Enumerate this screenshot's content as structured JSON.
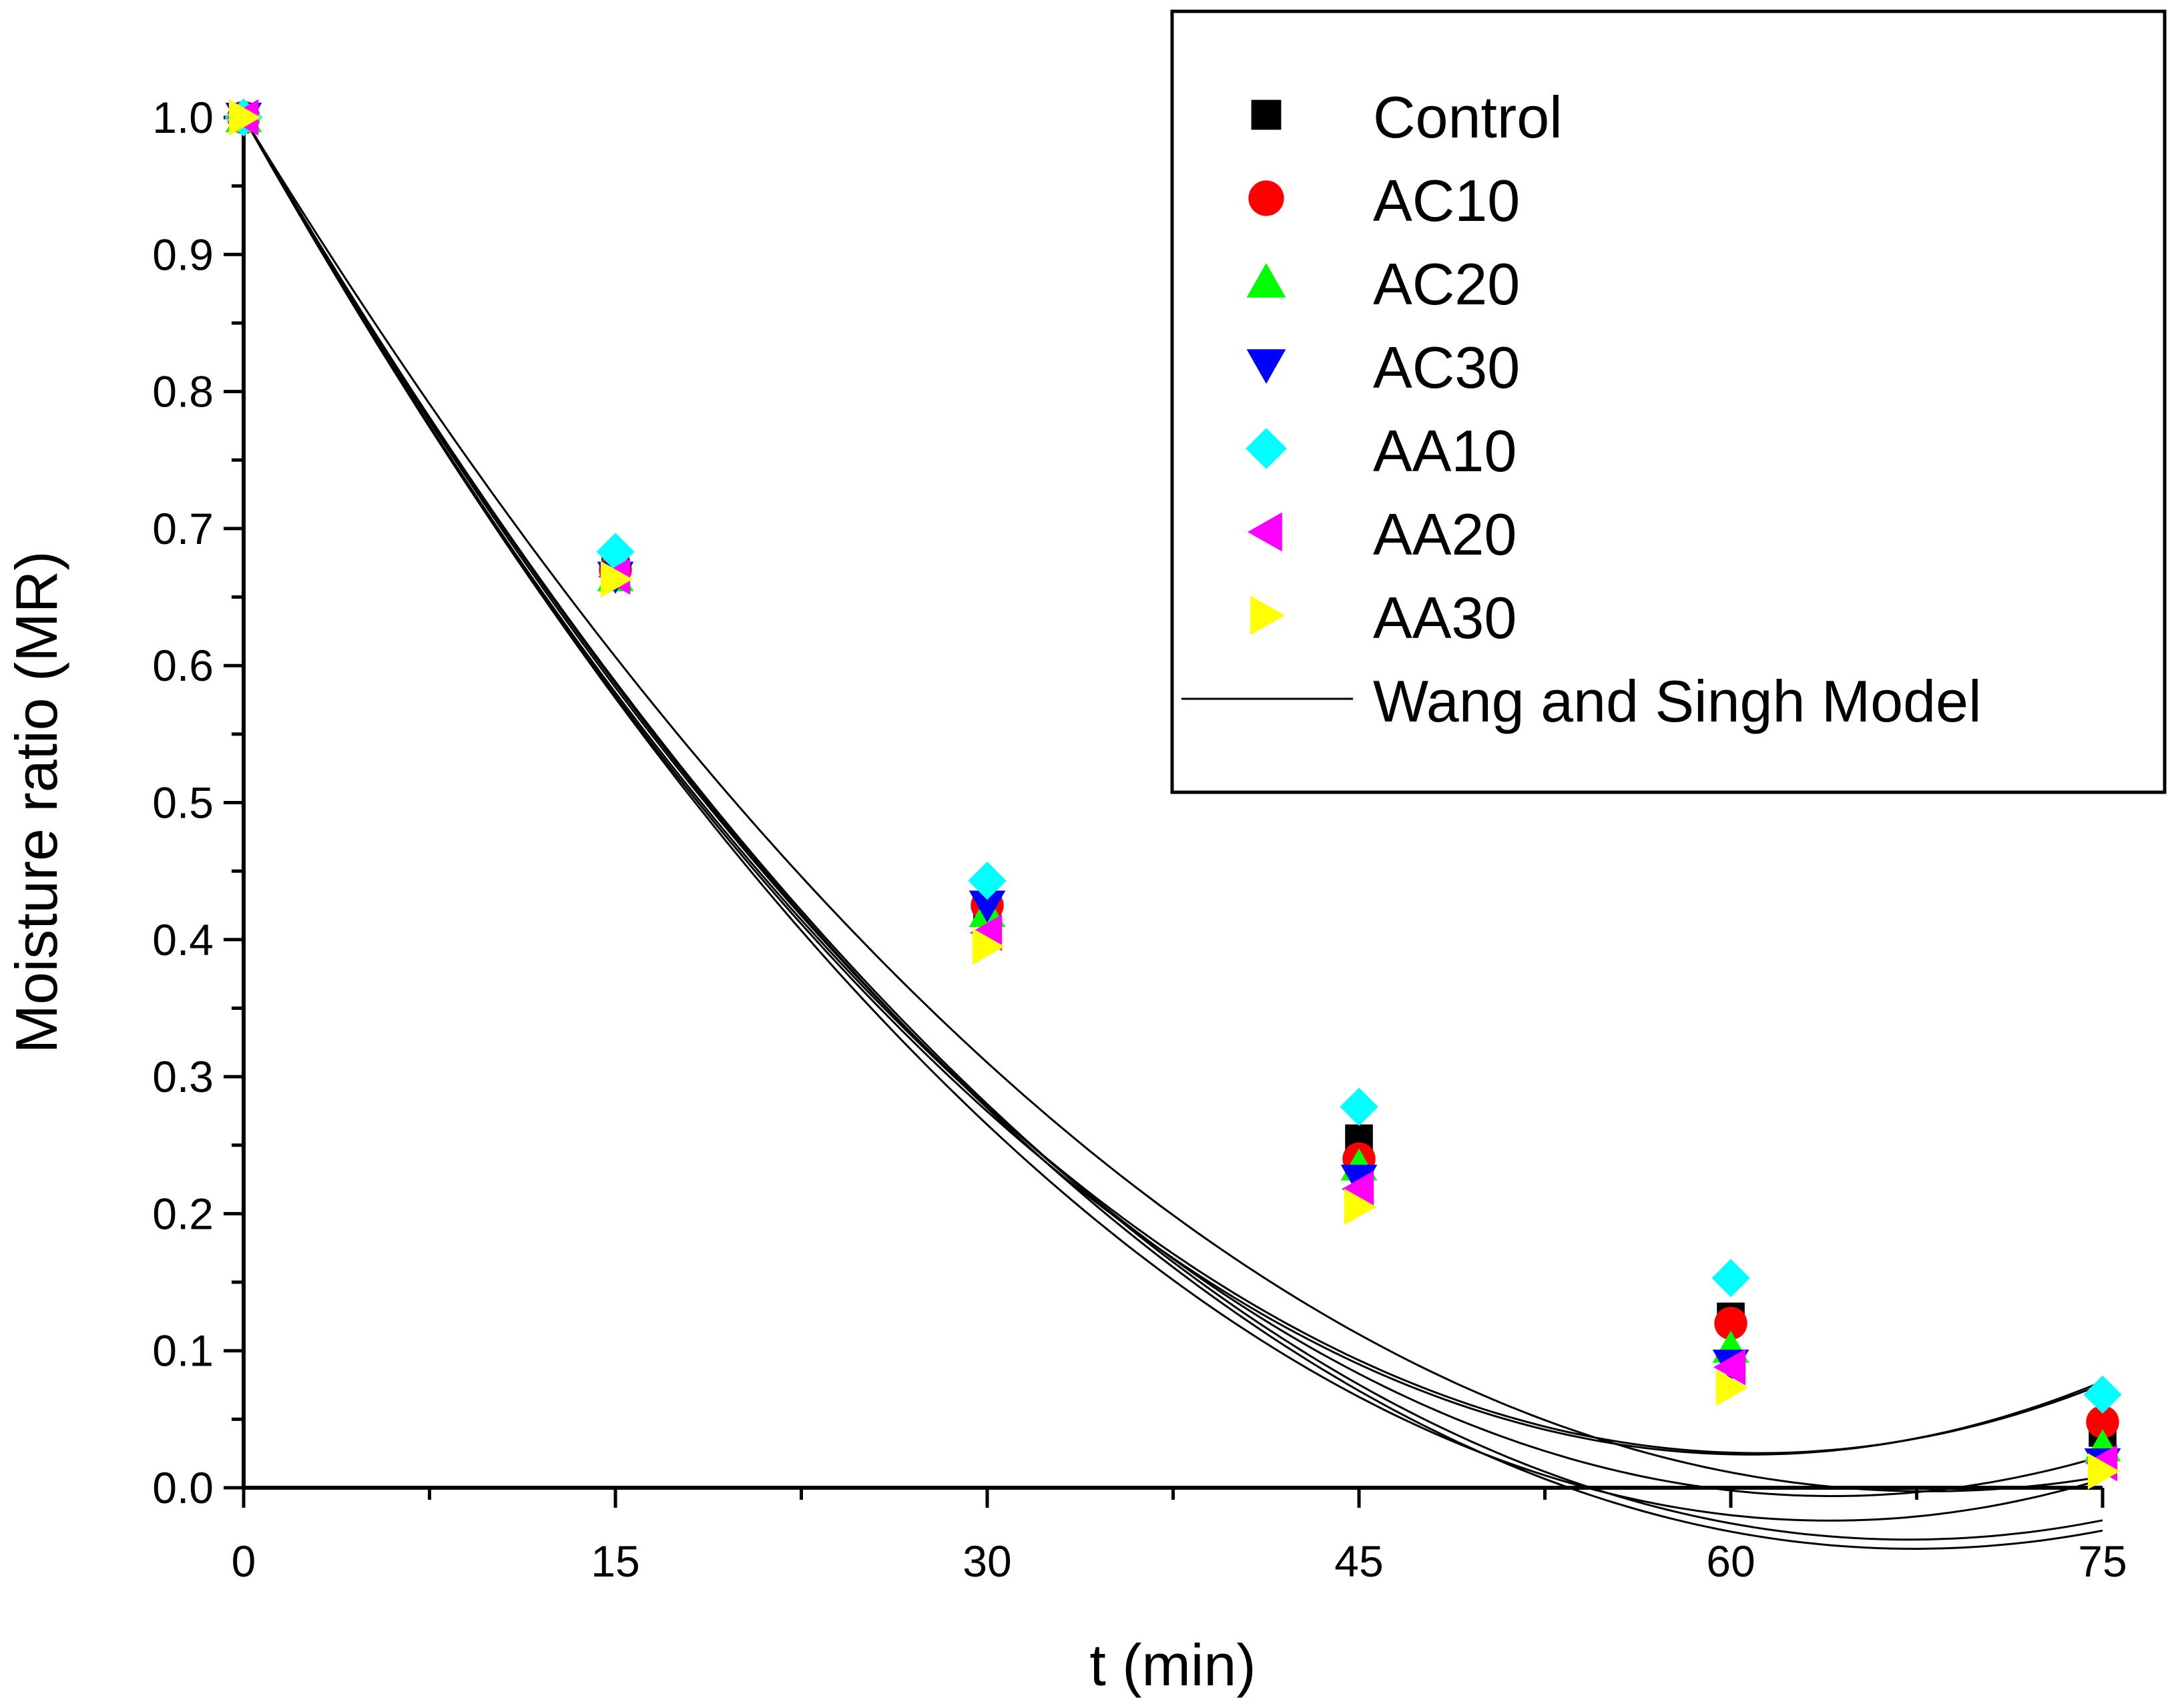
{
  "chart_data": {
    "type": "scatter",
    "title": "",
    "xlabel": "t (min)",
    "ylabel": "Moisture ratio (MR)",
    "xlim": [
      0,
      75
    ],
    "ylim": [
      0.0,
      1.0
    ],
    "x_ticks": [
      0,
      15,
      30,
      45,
      60,
      75
    ],
    "x_tick_labels": [
      "0",
      "15",
      "30",
      "45",
      "60",
      "75"
    ],
    "y_ticks": [
      0.0,
      0.1,
      0.2,
      0.3,
      0.4,
      0.5,
      0.6,
      0.7,
      0.8,
      0.9,
      1.0
    ],
    "y_tick_labels": [
      "0.0",
      "0.1",
      "0.2",
      "0.3",
      "0.4",
      "0.5",
      "0.6",
      "0.7",
      "0.8",
      "0.9",
      "1.0"
    ],
    "grid": false,
    "legend_position": "top-right",
    "x": [
      0,
      15,
      30,
      45,
      60,
      75
    ],
    "series": [
      {
        "name": "Control",
        "marker": "square",
        "color": "#000000",
        "values": [
          1.0,
          0.67,
          0.425,
          0.255,
          0.125,
          0.04
        ]
      },
      {
        "name": "AC10",
        "marker": "circle",
        "color": "#ff0000",
        "values": [
          1.0,
          0.67,
          0.425,
          0.24,
          0.12,
          0.048
        ]
      },
      {
        "name": "AC20",
        "marker": "triangle-up",
        "color": "#00ff00",
        "values": [
          1.0,
          0.665,
          0.42,
          0.235,
          0.102,
          0.03
        ]
      },
      {
        "name": "AC30",
        "marker": "triangle-down",
        "color": "#0000ff",
        "values": [
          1.0,
          0.665,
          0.425,
          0.225,
          0.09,
          0.018
        ]
      },
      {
        "name": "AA10",
        "marker": "diamond",
        "color": "#00ffff",
        "values": [
          1.0,
          0.683,
          0.443,
          0.278,
          0.153,
          0.068
        ]
      },
      {
        "name": "AA20",
        "marker": "triangle-left",
        "color": "#ff00ff",
        "values": [
          1.0,
          0.665,
          0.405,
          0.218,
          0.088,
          0.018
        ]
      },
      {
        "name": "AA30",
        "marker": "triangle-right",
        "color": "#ffff00",
        "values": [
          1.0,
          0.663,
          0.395,
          0.205,
          0.073,
          0.012
        ]
      }
    ],
    "model_name": "Wang and Singh Model",
    "model_color": "#000000",
    "model_curves": [
      {
        "a": -0.0321,
        "b": 0.000264
      },
      {
        "a": -0.0319,
        "b": 0.000261
      },
      {
        "a": -0.0314,
        "b": 0.000245
      },
      {
        "a": -0.0309,
        "b": 0.00023
      },
      {
        "a": -0.032,
        "b": 0.00025
      },
      {
        "a": -0.031,
        "b": 0.00023
      },
      {
        "a": -0.0295,
        "b": 0.000217
      }
    ]
  }
}
